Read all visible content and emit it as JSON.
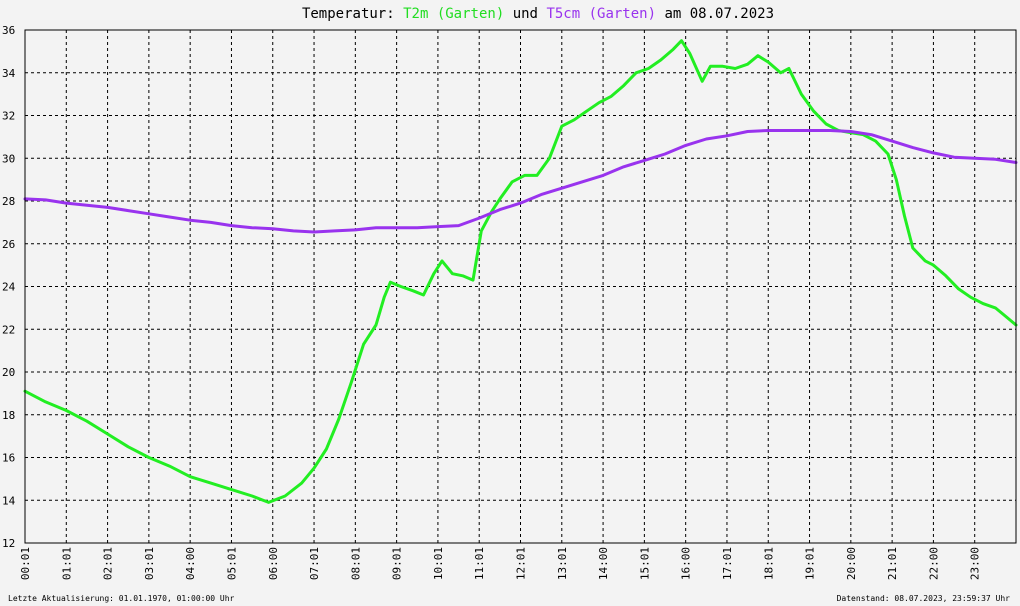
{
  "title": {
    "prefix": "Temperatur:",
    "series1": "T2m (Garten)",
    "connector": "und",
    "series2": "T5cm (Garten)",
    "suffix": "am 08.07.2023"
  },
  "footer": {
    "left": "Letzte Aktualisierung: 01.01.1970, 01:00:00 Uhr",
    "right": "Datenstand: 08.07.2023, 23:59:37 Uhr"
  },
  "colors": {
    "t2m": "#22ee22",
    "t5cm": "#9933ee",
    "background": "#f3f3f3",
    "grid": "#000000"
  },
  "chart_data": {
    "type": "line",
    "x_unit": "hour of day",
    "xlim": [
      0,
      24
    ],
    "ylim": [
      12,
      36
    ],
    "y_ticks": [
      12,
      14,
      16,
      18,
      20,
      22,
      24,
      26,
      28,
      30,
      32,
      34,
      36
    ],
    "x_tick_labels": [
      "00:01",
      "01:01",
      "02:01",
      "03:01",
      "04:00",
      "05:01",
      "06:00",
      "07:01",
      "08:01",
      "09:01",
      "10:01",
      "11:01",
      "12:01",
      "13:01",
      "14:00",
      "15:01",
      "16:00",
      "17:01",
      "18:01",
      "19:01",
      "20:00",
      "21:01",
      "22:00",
      "23:00"
    ],
    "grid": true,
    "legend": "in title",
    "series": [
      {
        "name": "T2m (Garten)",
        "color": "#22ee22",
        "points": [
          [
            0.0,
            19.1
          ],
          [
            0.5,
            18.6
          ],
          [
            1.0,
            18.2
          ],
          [
            1.5,
            17.7
          ],
          [
            2.0,
            17.1
          ],
          [
            2.5,
            16.5
          ],
          [
            3.0,
            16.0
          ],
          [
            3.5,
            15.6
          ],
          [
            4.0,
            15.1
          ],
          [
            4.5,
            14.8
          ],
          [
            5.0,
            14.5
          ],
          [
            5.5,
            14.2
          ],
          [
            5.9,
            13.9
          ],
          [
            6.3,
            14.2
          ],
          [
            6.7,
            14.8
          ],
          [
            7.0,
            15.5
          ],
          [
            7.3,
            16.4
          ],
          [
            7.6,
            17.8
          ],
          [
            7.9,
            19.5
          ],
          [
            8.2,
            21.3
          ],
          [
            8.5,
            22.2
          ],
          [
            8.7,
            23.5
          ],
          [
            8.85,
            24.2
          ],
          [
            9.1,
            24.0
          ],
          [
            9.4,
            23.8
          ],
          [
            9.65,
            23.6
          ],
          [
            9.9,
            24.6
          ],
          [
            10.1,
            25.2
          ],
          [
            10.35,
            24.6
          ],
          [
            10.6,
            24.5
          ],
          [
            10.85,
            24.3
          ],
          [
            11.05,
            26.6
          ],
          [
            11.3,
            27.5
          ],
          [
            11.5,
            28.1
          ],
          [
            11.8,
            28.9
          ],
          [
            12.1,
            29.2
          ],
          [
            12.4,
            29.2
          ],
          [
            12.7,
            30.0
          ],
          [
            13.0,
            31.5
          ],
          [
            13.3,
            31.8
          ],
          [
            13.6,
            32.2
          ],
          [
            13.9,
            32.6
          ],
          [
            14.2,
            32.9
          ],
          [
            14.5,
            33.4
          ],
          [
            14.8,
            34.0
          ],
          [
            15.1,
            34.2
          ],
          [
            15.4,
            34.6
          ],
          [
            15.7,
            35.1
          ],
          [
            15.9,
            35.5
          ],
          [
            16.1,
            34.9
          ],
          [
            16.4,
            33.6
          ],
          [
            16.6,
            34.3
          ],
          [
            16.9,
            34.3
          ],
          [
            17.2,
            34.2
          ],
          [
            17.5,
            34.4
          ],
          [
            17.75,
            34.8
          ],
          [
            18.0,
            34.5
          ],
          [
            18.3,
            34.0
          ],
          [
            18.5,
            34.2
          ],
          [
            18.8,
            33.0
          ],
          [
            19.1,
            32.2
          ],
          [
            19.4,
            31.6
          ],
          [
            19.7,
            31.3
          ],
          [
            20.0,
            31.2
          ],
          [
            20.3,
            31.1
          ],
          [
            20.6,
            30.8
          ],
          [
            20.9,
            30.2
          ],
          [
            21.1,
            29.0
          ],
          [
            21.3,
            27.3
          ],
          [
            21.5,
            25.8
          ],
          [
            21.8,
            25.2
          ],
          [
            22.0,
            25.0
          ],
          [
            22.3,
            24.5
          ],
          [
            22.6,
            23.9
          ],
          [
            22.9,
            23.5
          ],
          [
            23.2,
            23.2
          ],
          [
            23.5,
            23.0
          ],
          [
            23.75,
            22.6
          ],
          [
            24.0,
            22.2
          ]
        ]
      },
      {
        "name": "T5cm (Garten)",
        "color": "#9933ee",
        "points": [
          [
            0.0,
            28.1
          ],
          [
            0.5,
            28.05
          ],
          [
            1.0,
            27.9
          ],
          [
            1.5,
            27.8
          ],
          [
            2.0,
            27.7
          ],
          [
            2.5,
            27.55
          ],
          [
            3.0,
            27.4
          ],
          [
            3.5,
            27.25
          ],
          [
            4.0,
            27.1
          ],
          [
            4.5,
            27.0
          ],
          [
            5.0,
            26.85
          ],
          [
            5.5,
            26.75
          ],
          [
            6.0,
            26.7
          ],
          [
            6.5,
            26.6
          ],
          [
            7.0,
            26.55
          ],
          [
            7.5,
            26.6
          ],
          [
            8.0,
            26.65
          ],
          [
            8.5,
            26.75
          ],
          [
            9.0,
            26.75
          ],
          [
            9.5,
            26.75
          ],
          [
            10.0,
            26.8
          ],
          [
            10.5,
            26.85
          ],
          [
            11.0,
            27.2
          ],
          [
            11.5,
            27.6
          ],
          [
            12.0,
            27.9
          ],
          [
            12.5,
            28.3
          ],
          [
            13.0,
            28.6
          ],
          [
            13.5,
            28.9
          ],
          [
            14.0,
            29.2
          ],
          [
            14.5,
            29.6
          ],
          [
            15.0,
            29.9
          ],
          [
            15.5,
            30.2
          ],
          [
            16.0,
            30.6
          ],
          [
            16.5,
            30.9
          ],
          [
            17.0,
            31.05
          ],
          [
            17.5,
            31.25
          ],
          [
            18.0,
            31.3
          ],
          [
            18.5,
            31.3
          ],
          [
            19.0,
            31.3
          ],
          [
            19.5,
            31.3
          ],
          [
            20.0,
            31.25
          ],
          [
            20.5,
            31.1
          ],
          [
            21.0,
            30.8
          ],
          [
            21.5,
            30.5
          ],
          [
            22.0,
            30.25
          ],
          [
            22.5,
            30.05
          ],
          [
            23.0,
            30.0
          ],
          [
            23.5,
            29.95
          ],
          [
            24.0,
            29.8
          ]
        ]
      }
    ]
  }
}
